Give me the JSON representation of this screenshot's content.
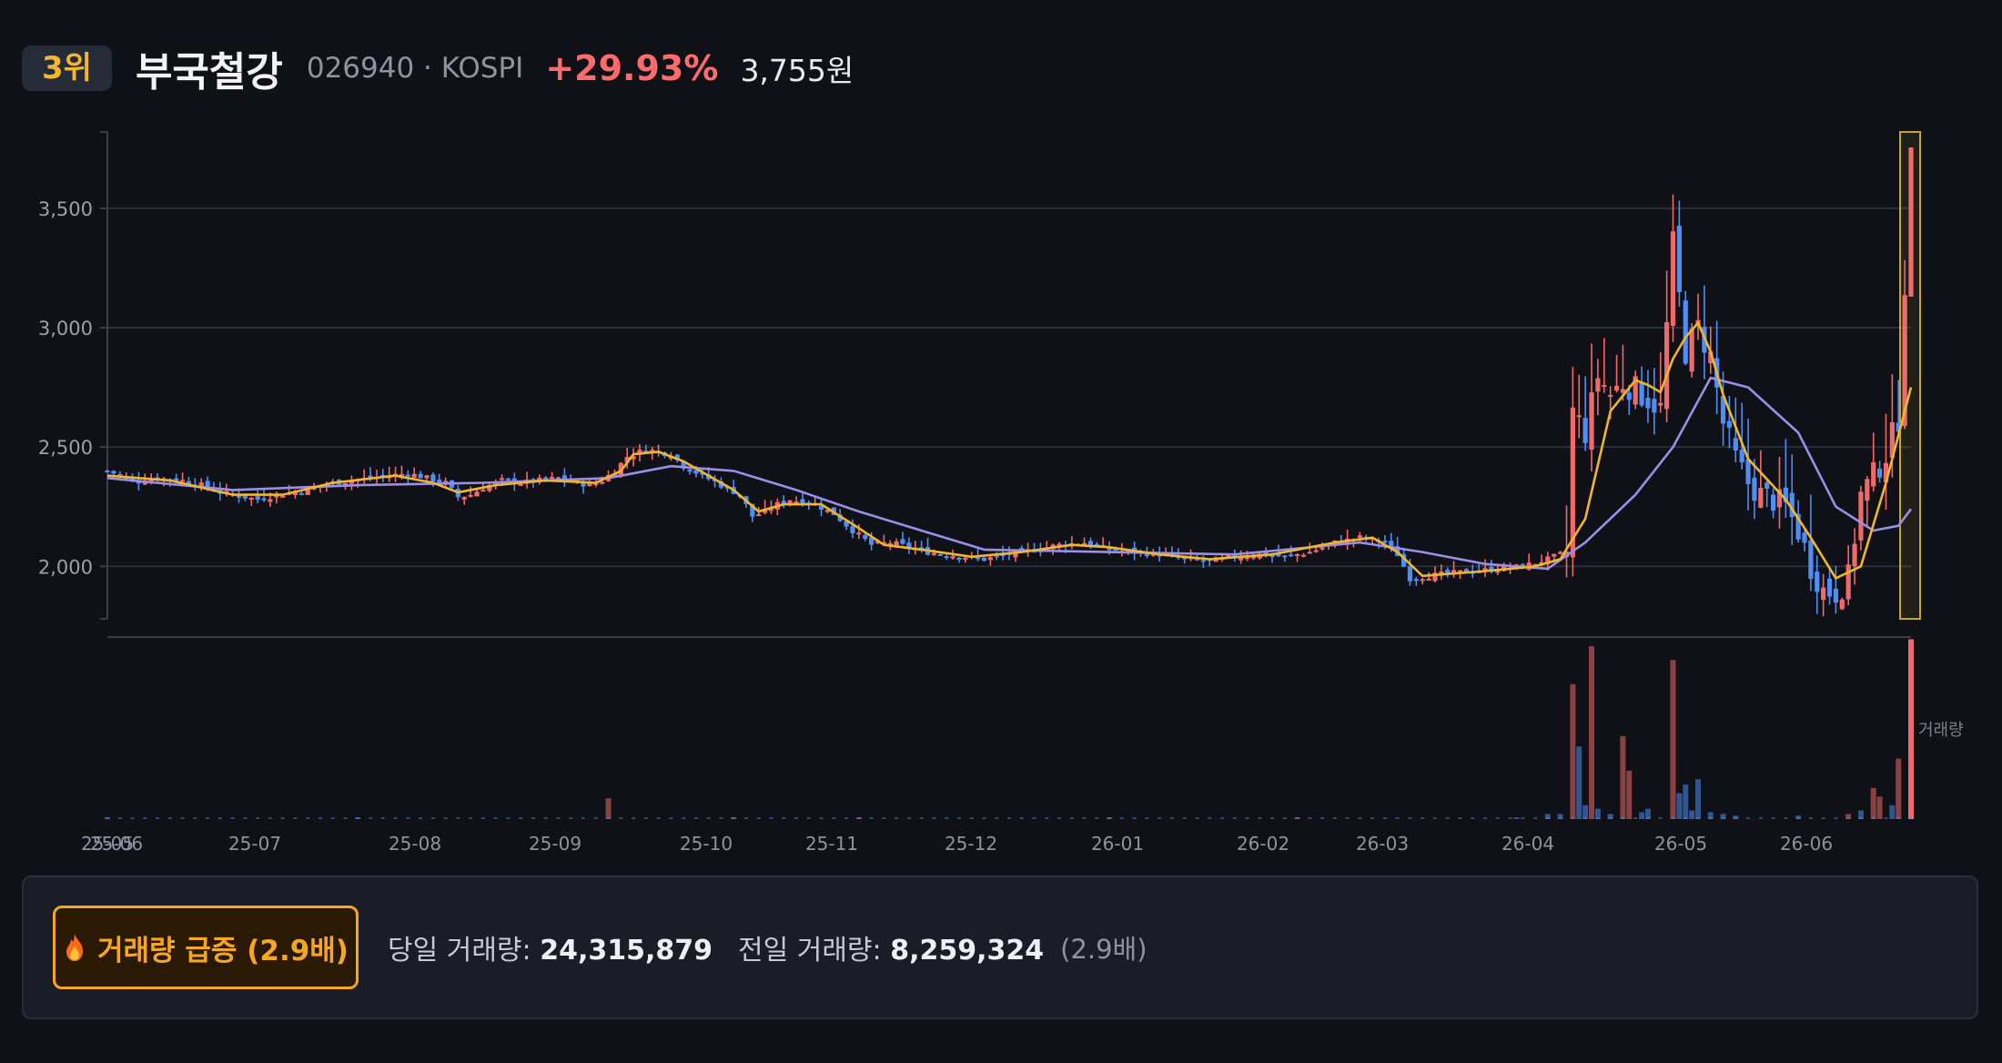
{
  "header": {
    "rank": "3위",
    "name": "부국철강",
    "meta": "026940 · KOSPI",
    "change_pct": "+29.93%",
    "price": "3,755원"
  },
  "colors": {
    "up": "#f06a6a",
    "down": "#4e8ef5",
    "ma_short": "#f0b72e",
    "ma_long": "#9a8ee8",
    "grid": "#2a2e39",
    "highlight": "#d8b826"
  },
  "chart_data": {
    "type": "candlestick",
    "y_ticks": [
      "3,500",
      "3,000",
      "2,500",
      "2,000"
    ],
    "y_tick_values": [
      3500,
      3000,
      2500,
      2000
    ],
    "ylim": [
      1780,
      3820
    ],
    "x_ticks": [
      "25-05",
      "25-06",
      "25-07",
      "25-08",
      "25-09",
      "25-10",
      "25-11",
      "25-12",
      "26-01",
      "26-02",
      "26-03",
      "26-04",
      "26-05",
      "26-06"
    ],
    "volume_label": "거래량",
    "series": [
      {
        "name": "close",
        "points": [
          [
            0,
            2400
          ],
          [
            3,
            2370
          ],
          [
            5,
            2355
          ],
          [
            8,
            2370
          ],
          [
            12,
            2360
          ],
          [
            15,
            2340
          ],
          [
            18,
            2310
          ],
          [
            21,
            2295
          ],
          [
            24,
            2280
          ],
          [
            27,
            2300
          ],
          [
            30,
            2310
          ],
          [
            33,
            2330
          ],
          [
            36,
            2350
          ],
          [
            39,
            2360
          ],
          [
            42,
            2370
          ],
          [
            45,
            2380
          ],
          [
            48,
            2390
          ],
          [
            51,
            2370
          ],
          [
            54,
            2350
          ],
          [
            56,
            2290
          ],
          [
            58,
            2300
          ],
          [
            60,
            2330
          ],
          [
            63,
            2360
          ],
          [
            66,
            2350
          ],
          [
            69,
            2360
          ],
          [
            72,
            2370
          ],
          [
            75,
            2350
          ],
          [
            77,
            2340
          ],
          [
            79,
            2360
          ],
          [
            81,
            2400
          ],
          [
            83,
            2460
          ],
          [
            86,
            2490
          ],
          [
            88,
            2480
          ],
          [
            90,
            2470
          ],
          [
            92,
            2420
          ],
          [
            95,
            2380
          ],
          [
            98,
            2340
          ],
          [
            101,
            2300
          ],
          [
            103,
            2210
          ],
          [
            105,
            2230
          ],
          [
            107,
            2260
          ],
          [
            109,
            2280
          ],
          [
            111,
            2270
          ],
          [
            113,
            2260
          ],
          [
            116,
            2220
          ],
          [
            119,
            2150
          ],
          [
            122,
            2090
          ],
          [
            125,
            2100
          ],
          [
            128,
            2080
          ],
          [
            131,
            2060
          ],
          [
            134,
            2050
          ],
          [
            137,
            2040
          ],
          [
            140,
            2030
          ],
          [
            144,
            2050
          ],
          [
            148,
            2070
          ],
          [
            152,
            2090
          ],
          [
            156,
            2100
          ],
          [
            160,
            2070
          ],
          [
            164,
            2060
          ],
          [
            168,
            2050
          ],
          [
            172,
            2030
          ],
          [
            176,
            2020
          ],
          [
            180,
            2040
          ],
          [
            184,
            2050
          ],
          [
            188,
            2040
          ],
          [
            192,
            2060
          ],
          [
            196,
            2100
          ],
          [
            200,
            2120
          ],
          [
            204,
            2100
          ],
          [
            206,
            2050
          ],
          [
            208,
            1950
          ],
          [
            211,
            1960
          ],
          [
            214,
            1970
          ],
          [
            218,
            1980
          ],
          [
            222,
            1990
          ],
          [
            226,
            2000
          ],
          [
            230,
            2030
          ],
          [
            233,
            2060
          ],
          [
            234,
            2650
          ],
          [
            236,
            2560
          ],
          [
            238,
            2800
          ],
          [
            240,
            2720
          ],
          [
            242,
            2770
          ],
          [
            244,
            2740
          ],
          [
            246,
            2700
          ],
          [
            248,
            2660
          ],
          [
            250,
            3350
          ],
          [
            252,
            2900
          ],
          [
            254,
            3000
          ],
          [
            256,
            2880
          ],
          [
            258,
            2600
          ],
          [
            260,
            2450
          ],
          [
            262,
            2350
          ],
          [
            264,
            2300
          ],
          [
            266,
            2280
          ],
          [
            268,
            2250
          ],
          [
            270,
            2150
          ],
          [
            272,
            2000
          ],
          [
            274,
            1900
          ],
          [
            276,
            1890
          ],
          [
            278,
            1950
          ],
          [
            280,
            2300
          ],
          [
            282,
            2380
          ],
          [
            284,
            2470
          ],
          [
            286,
            2620
          ],
          [
            288,
            3755
          ]
        ]
      },
      {
        "name": "ma_short",
        "points": [
          [
            0,
            2380
          ],
          [
            10,
            2360
          ],
          [
            20,
            2300
          ],
          [
            28,
            2300
          ],
          [
            36,
            2350
          ],
          [
            46,
            2380
          ],
          [
            52,
            2350
          ],
          [
            56,
            2310
          ],
          [
            62,
            2340
          ],
          [
            70,
            2360
          ],
          [
            78,
            2350
          ],
          [
            82,
            2400
          ],
          [
            84,
            2470
          ],
          [
            88,
            2480
          ],
          [
            92,
            2440
          ],
          [
            100,
            2320
          ],
          [
            104,
            2230
          ],
          [
            108,
            2260
          ],
          [
            114,
            2260
          ],
          [
            120,
            2160
          ],
          [
            124,
            2090
          ],
          [
            130,
            2070
          ],
          [
            138,
            2040
          ],
          [
            146,
            2060
          ],
          [
            154,
            2090
          ],
          [
            160,
            2080
          ],
          [
            168,
            2050
          ],
          [
            176,
            2030
          ],
          [
            186,
            2050
          ],
          [
            196,
            2100
          ],
          [
            202,
            2120
          ],
          [
            206,
            2060
          ],
          [
            210,
            1960
          ],
          [
            220,
            1980
          ],
          [
            228,
            2000
          ],
          [
            232,
            2030
          ],
          [
            236,
            2200
          ],
          [
            240,
            2650
          ],
          [
            244,
            2780
          ],
          [
            246,
            2760
          ],
          [
            248,
            2730
          ],
          [
            250,
            2870
          ],
          [
            252,
            2960
          ],
          [
            254,
            3020
          ],
          [
            256,
            2900
          ],
          [
            258,
            2720
          ],
          [
            262,
            2450
          ],
          [
            268,
            2280
          ],
          [
            272,
            2120
          ],
          [
            276,
            1950
          ],
          [
            280,
            2000
          ],
          [
            284,
            2350
          ],
          [
            288,
            2750
          ]
        ]
      },
      {
        "name": "ma_long",
        "points": [
          [
            0,
            2370
          ],
          [
            20,
            2320
          ],
          [
            40,
            2340
          ],
          [
            60,
            2350
          ],
          [
            80,
            2370
          ],
          [
            90,
            2420
          ],
          [
            100,
            2400
          ],
          [
            110,
            2320
          ],
          [
            120,
            2230
          ],
          [
            130,
            2150
          ],
          [
            140,
            2070
          ],
          [
            160,
            2060
          ],
          [
            180,
            2050
          ],
          [
            200,
            2100
          ],
          [
            210,
            2060
          ],
          [
            220,
            2010
          ],
          [
            230,
            1990
          ],
          [
            236,
            2100
          ],
          [
            244,
            2300
          ],
          [
            250,
            2500
          ],
          [
            256,
            2790
          ],
          [
            262,
            2750
          ],
          [
            270,
            2560
          ],
          [
            276,
            2250
          ],
          [
            282,
            2150
          ],
          [
            286,
            2170
          ],
          [
            288,
            2240
          ]
        ]
      }
    ],
    "volume": {
      "bars": [
        [
          0,
          0.01,
          "down"
        ],
        [
          40,
          0.01,
          "down"
        ],
        [
          80,
          0.12,
          "up"
        ],
        [
          100,
          0.01,
          "up"
        ],
        [
          120,
          0.01,
          "up"
        ],
        [
          160,
          0.01,
          "up"
        ],
        [
          190,
          0.01,
          "up"
        ],
        [
          225,
          0.01,
          "down"
        ],
        [
          230,
          0.03,
          "down"
        ],
        [
          232,
          0.03,
          "down"
        ],
        [
          234,
          0.78,
          "up"
        ],
        [
          235,
          0.42,
          "down"
        ],
        [
          236,
          0.08,
          "down"
        ],
        [
          237,
          1.0,
          "up"
        ],
        [
          238,
          0.06,
          "down"
        ],
        [
          240,
          0.03,
          "down"
        ],
        [
          242,
          0.48,
          "up"
        ],
        [
          243,
          0.28,
          "up"
        ],
        [
          245,
          0.04,
          "down"
        ],
        [
          246,
          0.06,
          "down"
        ],
        [
          250,
          0.92,
          "up"
        ],
        [
          251,
          0.15,
          "down"
        ],
        [
          252,
          0.2,
          "down"
        ],
        [
          253,
          0.05,
          "down"
        ],
        [
          254,
          0.23,
          "down"
        ],
        [
          256,
          0.04,
          "down"
        ],
        [
          258,
          0.03,
          "down"
        ],
        [
          260,
          0.02,
          "down"
        ],
        [
          270,
          0.02,
          "down"
        ],
        [
          278,
          0.03,
          "up"
        ],
        [
          280,
          0.05,
          "down"
        ],
        [
          282,
          0.18,
          "up"
        ],
        [
          283,
          0.13,
          "up"
        ],
        [
          285,
          0.08,
          "down"
        ],
        [
          286,
          0.35,
          "up"
        ],
        [
          288,
          1.04,
          "up"
        ]
      ]
    }
  },
  "alert": {
    "label": "거래량 급증 (2.9배)"
  },
  "stats": {
    "today_label": "당일 거래량:",
    "today_value": "24,315,879",
    "prev_label": "전일 거래량:",
    "prev_value": "8,259,324",
    "ratio": "(2.9배)"
  }
}
